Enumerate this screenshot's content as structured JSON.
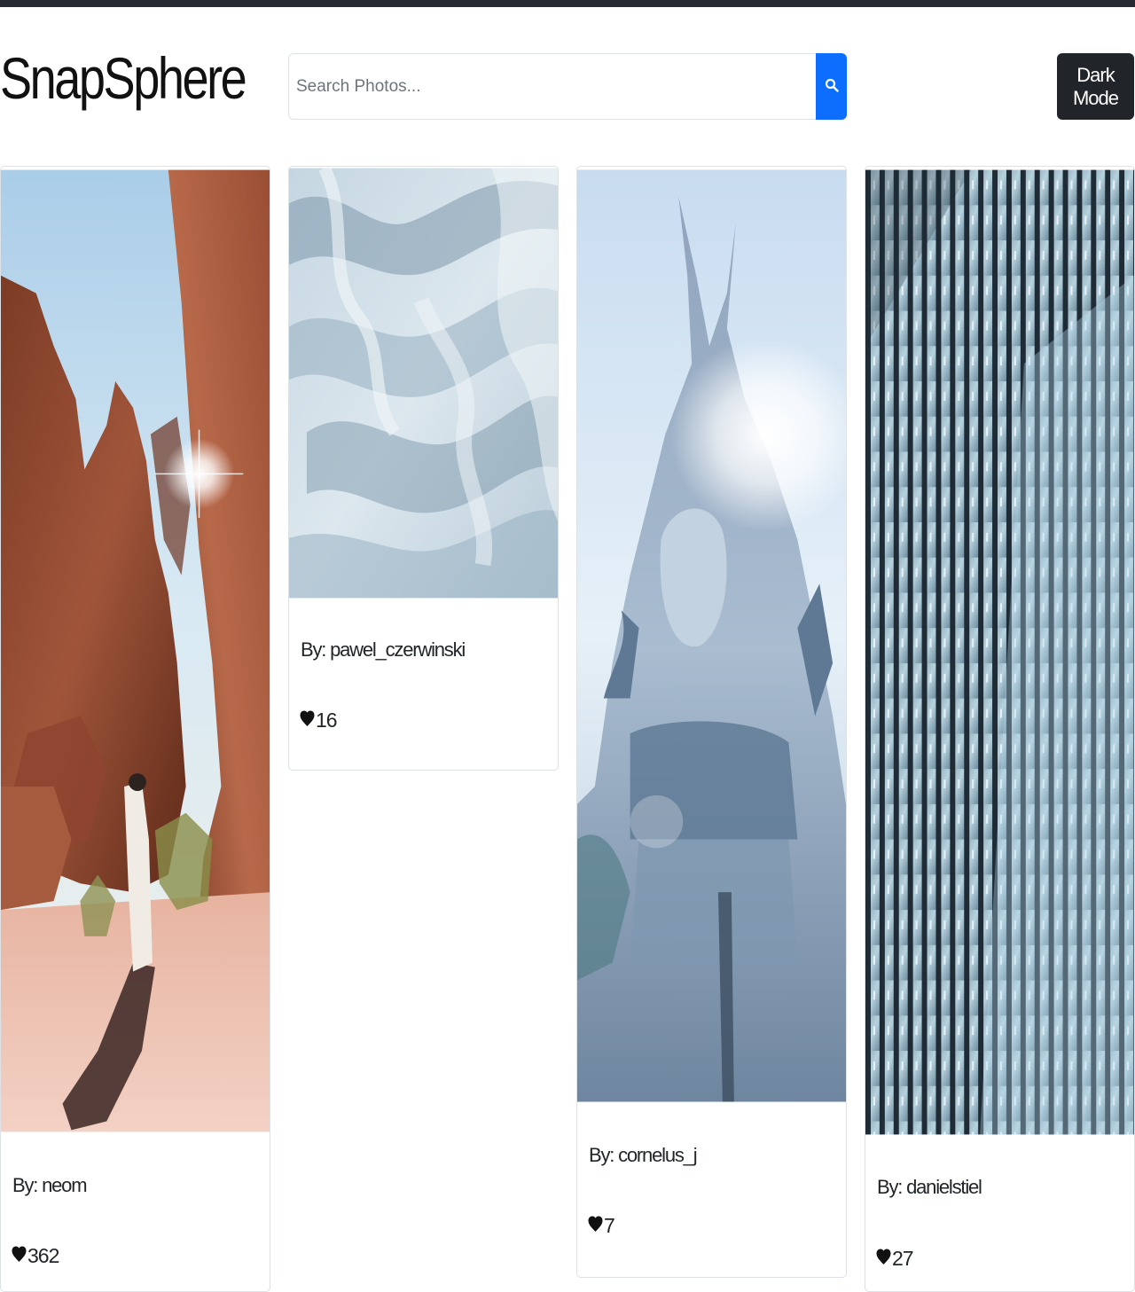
{
  "app": {
    "brand": "SnapSphere"
  },
  "search": {
    "placeholder": "Search Photos...",
    "value": ""
  },
  "header": {
    "dark_mode_label": "Dark Mode"
  },
  "photos": [
    {
      "author": "By: neom",
      "likes": "362",
      "subject": "desert canyon with person"
    },
    {
      "author": "By: pawel_czerwinski",
      "likes": "16",
      "subject": "abstract fabric waves"
    },
    {
      "author": "By: cornelus_j",
      "likes": "7",
      "subject": "ornate temple statue"
    },
    {
      "author": "By: danielstiel",
      "likes": "27",
      "subject": "glass building facade"
    }
  ],
  "colors": {
    "topbar": "#262a33",
    "search_button": "#0d6efd",
    "dark_mode_button": "#212529"
  },
  "icons": {
    "search": "search-icon",
    "like": "heart-icon"
  }
}
